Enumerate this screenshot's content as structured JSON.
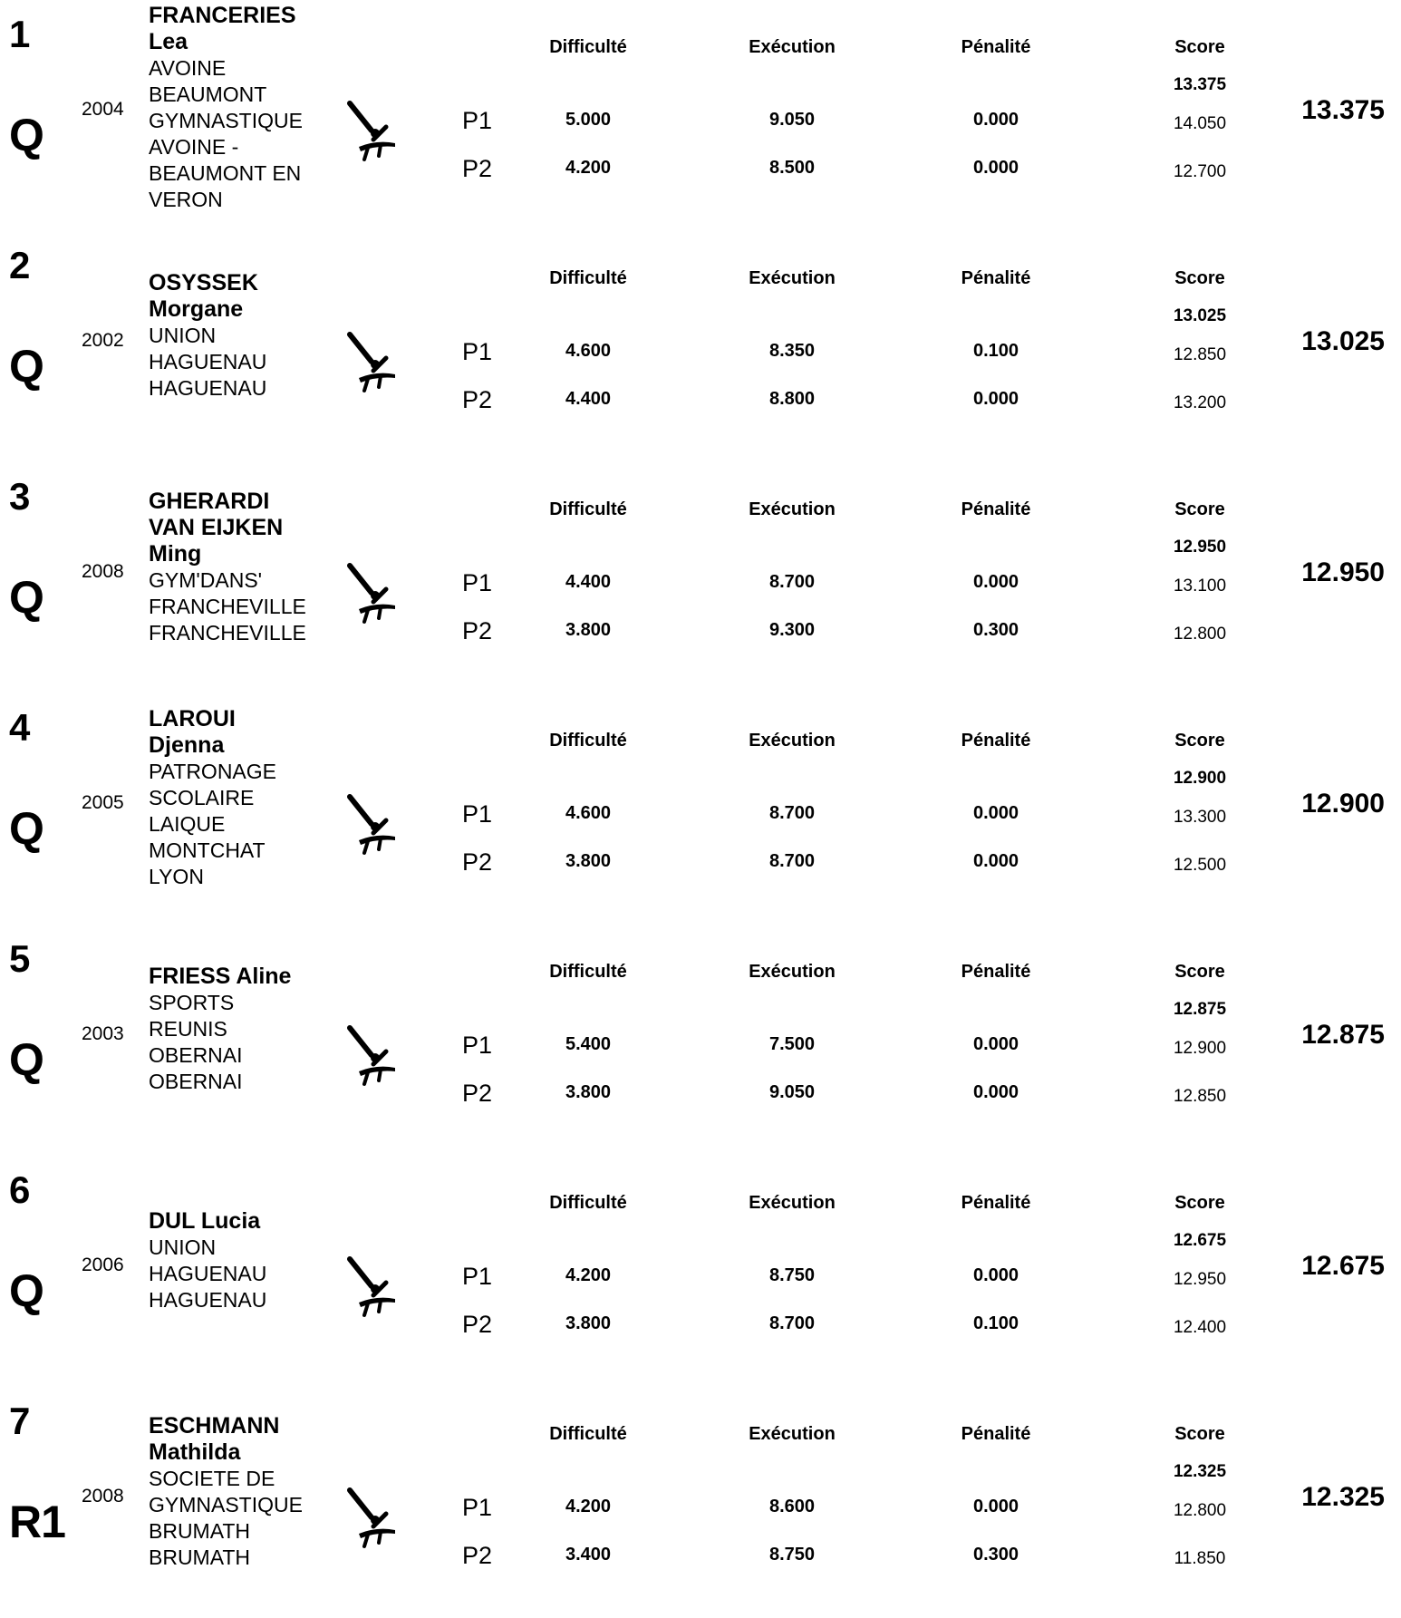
{
  "headers": {
    "difficulty": "Difficulté",
    "execution": "Exécution",
    "penalty": "Pénalité",
    "score": "Score"
  },
  "entries": [
    {
      "rank": "1",
      "qual": "Q",
      "year": "2004",
      "name_lines": [
        "FRANCERIES",
        "Lea"
      ],
      "club_lines": [
        "AVOINE",
        "BEAUMONT",
        "GYMNASTIQUE",
        "AVOINE -",
        "BEAUMONT EN",
        "VERON"
      ],
      "best": "13.375",
      "final": "13.375",
      "passes": [
        {
          "label": "P1",
          "difficulty": "5.000",
          "execution": "9.050",
          "penalty": "0.000",
          "score": "14.050"
        },
        {
          "label": "P2",
          "difficulty": "4.200",
          "execution": "8.500",
          "penalty": "0.000",
          "score": "12.700"
        }
      ]
    },
    {
      "rank": "2",
      "qual": "Q",
      "year": "2002",
      "name_lines": [
        "OSYSSEK",
        "Morgane"
      ],
      "club_lines": [
        "UNION",
        "HAGUENAU",
        "HAGUENAU"
      ],
      "best": "13.025",
      "final": "13.025",
      "passes": [
        {
          "label": "P1",
          "difficulty": "4.600",
          "execution": "8.350",
          "penalty": "0.100",
          "score": "12.850"
        },
        {
          "label": "P2",
          "difficulty": "4.400",
          "execution": "8.800",
          "penalty": "0.000",
          "score": "13.200"
        }
      ]
    },
    {
      "rank": "3",
      "qual": "Q",
      "year": "2008",
      "name_lines": [
        "GHERARDI",
        "VAN EIJKEN",
        "Ming"
      ],
      "club_lines": [
        "GYM'DANS'",
        "FRANCHEVILLE",
        "FRANCHEVILLE"
      ],
      "best": "12.950",
      "final": "12.950",
      "passes": [
        {
          "label": "P1",
          "difficulty": "4.400",
          "execution": "8.700",
          "penalty": "0.000",
          "score": "13.100"
        },
        {
          "label": "P2",
          "difficulty": "3.800",
          "execution": "9.300",
          "penalty": "0.300",
          "score": "12.800"
        }
      ]
    },
    {
      "rank": "4",
      "qual": "Q",
      "year": "2005",
      "name_lines": [
        "LAROUI",
        "Djenna"
      ],
      "club_lines": [
        "PATRONAGE",
        "SCOLAIRE",
        "LAIQUE",
        "MONTCHAT",
        "LYON"
      ],
      "best": "12.900",
      "final": "12.900",
      "passes": [
        {
          "label": "P1",
          "difficulty": "4.600",
          "execution": "8.700",
          "penalty": "0.000",
          "score": "13.300"
        },
        {
          "label": "P2",
          "difficulty": "3.800",
          "execution": "8.700",
          "penalty": "0.000",
          "score": "12.500"
        }
      ]
    },
    {
      "rank": "5",
      "qual": "Q",
      "year": "2003",
      "name_lines": [
        "FRIESS Aline"
      ],
      "club_lines": [
        "SPORTS",
        "REUNIS",
        "OBERNAI",
        "OBERNAI"
      ],
      "best": "12.875",
      "final": "12.875",
      "passes": [
        {
          "label": "P1",
          "difficulty": "5.400",
          "execution": "7.500",
          "penalty": "0.000",
          "score": "12.900"
        },
        {
          "label": "P2",
          "difficulty": "3.800",
          "execution": "9.050",
          "penalty": "0.000",
          "score": "12.850"
        }
      ]
    },
    {
      "rank": "6",
      "qual": "Q",
      "year": "2006",
      "name_lines": [
        "DUL Lucia"
      ],
      "club_lines": [
        "UNION",
        "HAGUENAU",
        "HAGUENAU"
      ],
      "best": "12.675",
      "final": "12.675",
      "passes": [
        {
          "label": "P1",
          "difficulty": "4.200",
          "execution": "8.750",
          "penalty": "0.000",
          "score": "12.950"
        },
        {
          "label": "P2",
          "difficulty": "3.800",
          "execution": "8.700",
          "penalty": "0.100",
          "score": "12.400"
        }
      ]
    },
    {
      "rank": "7",
      "qual": "R1",
      "year": "2008",
      "name_lines": [
        "ESCHMANN",
        "Mathilda"
      ],
      "club_lines": [
        "SOCIETE DE",
        "GYMNASTIQUE",
        "BRUMATH",
        "BRUMATH"
      ],
      "best": "12.325",
      "final": "12.325",
      "passes": [
        {
          "label": "P1",
          "difficulty": "4.200",
          "execution": "8.600",
          "penalty": "0.000",
          "score": "12.800"
        },
        {
          "label": "P2",
          "difficulty": "3.400",
          "execution": "8.750",
          "penalty": "0.300",
          "score": "11.850"
        }
      ]
    }
  ]
}
